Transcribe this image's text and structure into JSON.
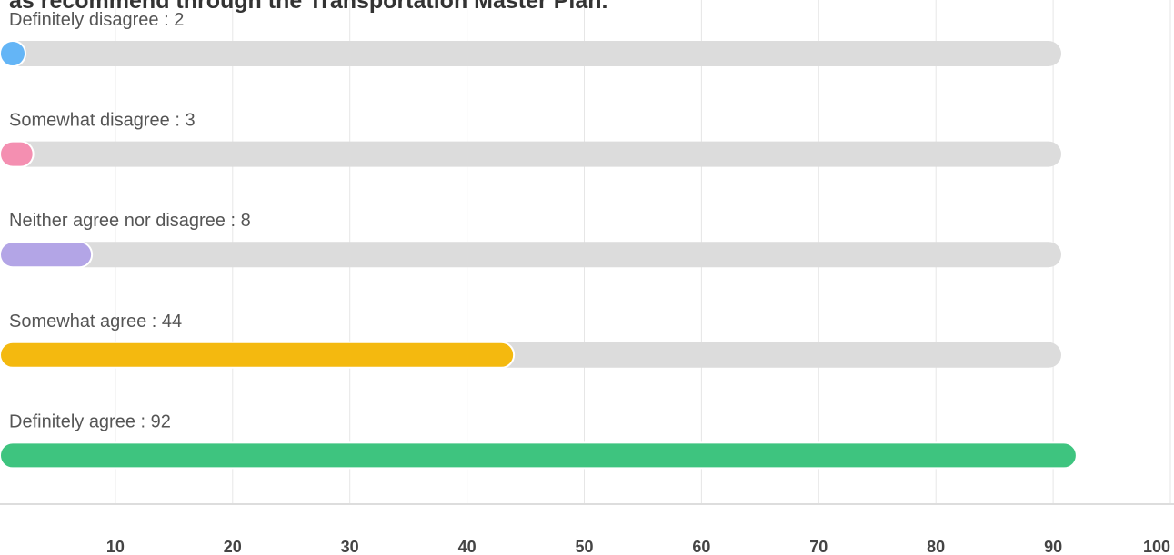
{
  "chart_data": {
    "type": "bar",
    "orientation": "horizontal",
    "title": "as recommend through the Transportation Master Plan.",
    "values": [
      2,
      3,
      8,
      44,
      92
    ],
    "value_labels": [
      "Definitely disagree : 2",
      "Somewhat disagree : 3",
      "Neither agree nor disagree : 8",
      "Somewhat agree : 44",
      "Definitely agree : 92"
    ],
    "colors": [
      "#64b5f6",
      "#f48fb1",
      "#b3a5e6",
      "#f4b90f",
      "#3ec47f"
    ],
    "xlim": [
      0,
      100
    ],
    "xticks": [
      10,
      20,
      30,
      40,
      50,
      60,
      70,
      80,
      90,
      100
    ],
    "grid": true
  }
}
